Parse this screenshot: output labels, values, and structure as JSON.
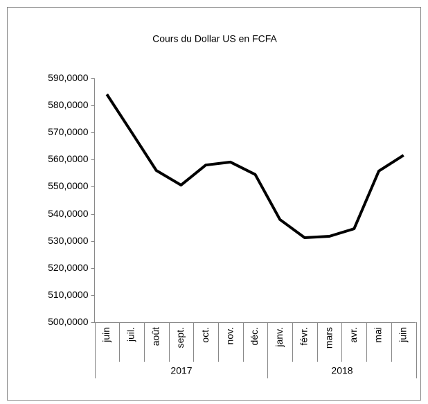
{
  "chart_data": {
    "type": "line",
    "title": "Cours du Dollar US en FCFA",
    "categories": [
      "juin",
      "juil.",
      "août",
      "sept.",
      "oct.",
      "nov.",
      "déc.",
      "janv.",
      "févr.",
      "mars",
      "avr.",
      "mai",
      "juin"
    ],
    "category_groups": [
      "2017",
      "2017",
      "2017",
      "2017",
      "2017",
      "2017",
      "2017",
      "2018",
      "2018",
      "2018",
      "2018",
      "2018",
      "2018"
    ],
    "series": [
      {
        "name": "Cours du Dollar US en FCFA",
        "color": "#000000",
        "values": [
          584.1,
          570.1,
          556.0,
          550.6,
          558.0,
          559.1,
          554.5,
          537.9,
          531.2,
          531.7,
          534.5,
          555.8,
          561.6
        ]
      }
    ],
    "ylim": [
      500,
      590
    ],
    "yticks": [
      {
        "value": 500,
        "label": "500,0000"
      },
      {
        "value": 510,
        "label": "510,0000"
      },
      {
        "value": 520,
        "label": "520,0000"
      },
      {
        "value": 530,
        "label": "530,0000"
      },
      {
        "value": 540,
        "label": "540,0000"
      },
      {
        "value": 550,
        "label": "550,0000"
      },
      {
        "value": 560,
        "label": "560,0000"
      },
      {
        "value": 570,
        "label": "570,0000"
      },
      {
        "value": 580,
        "label": "580,0000"
      },
      {
        "value": 590,
        "label": "590,0000"
      }
    ],
    "grid": false
  }
}
